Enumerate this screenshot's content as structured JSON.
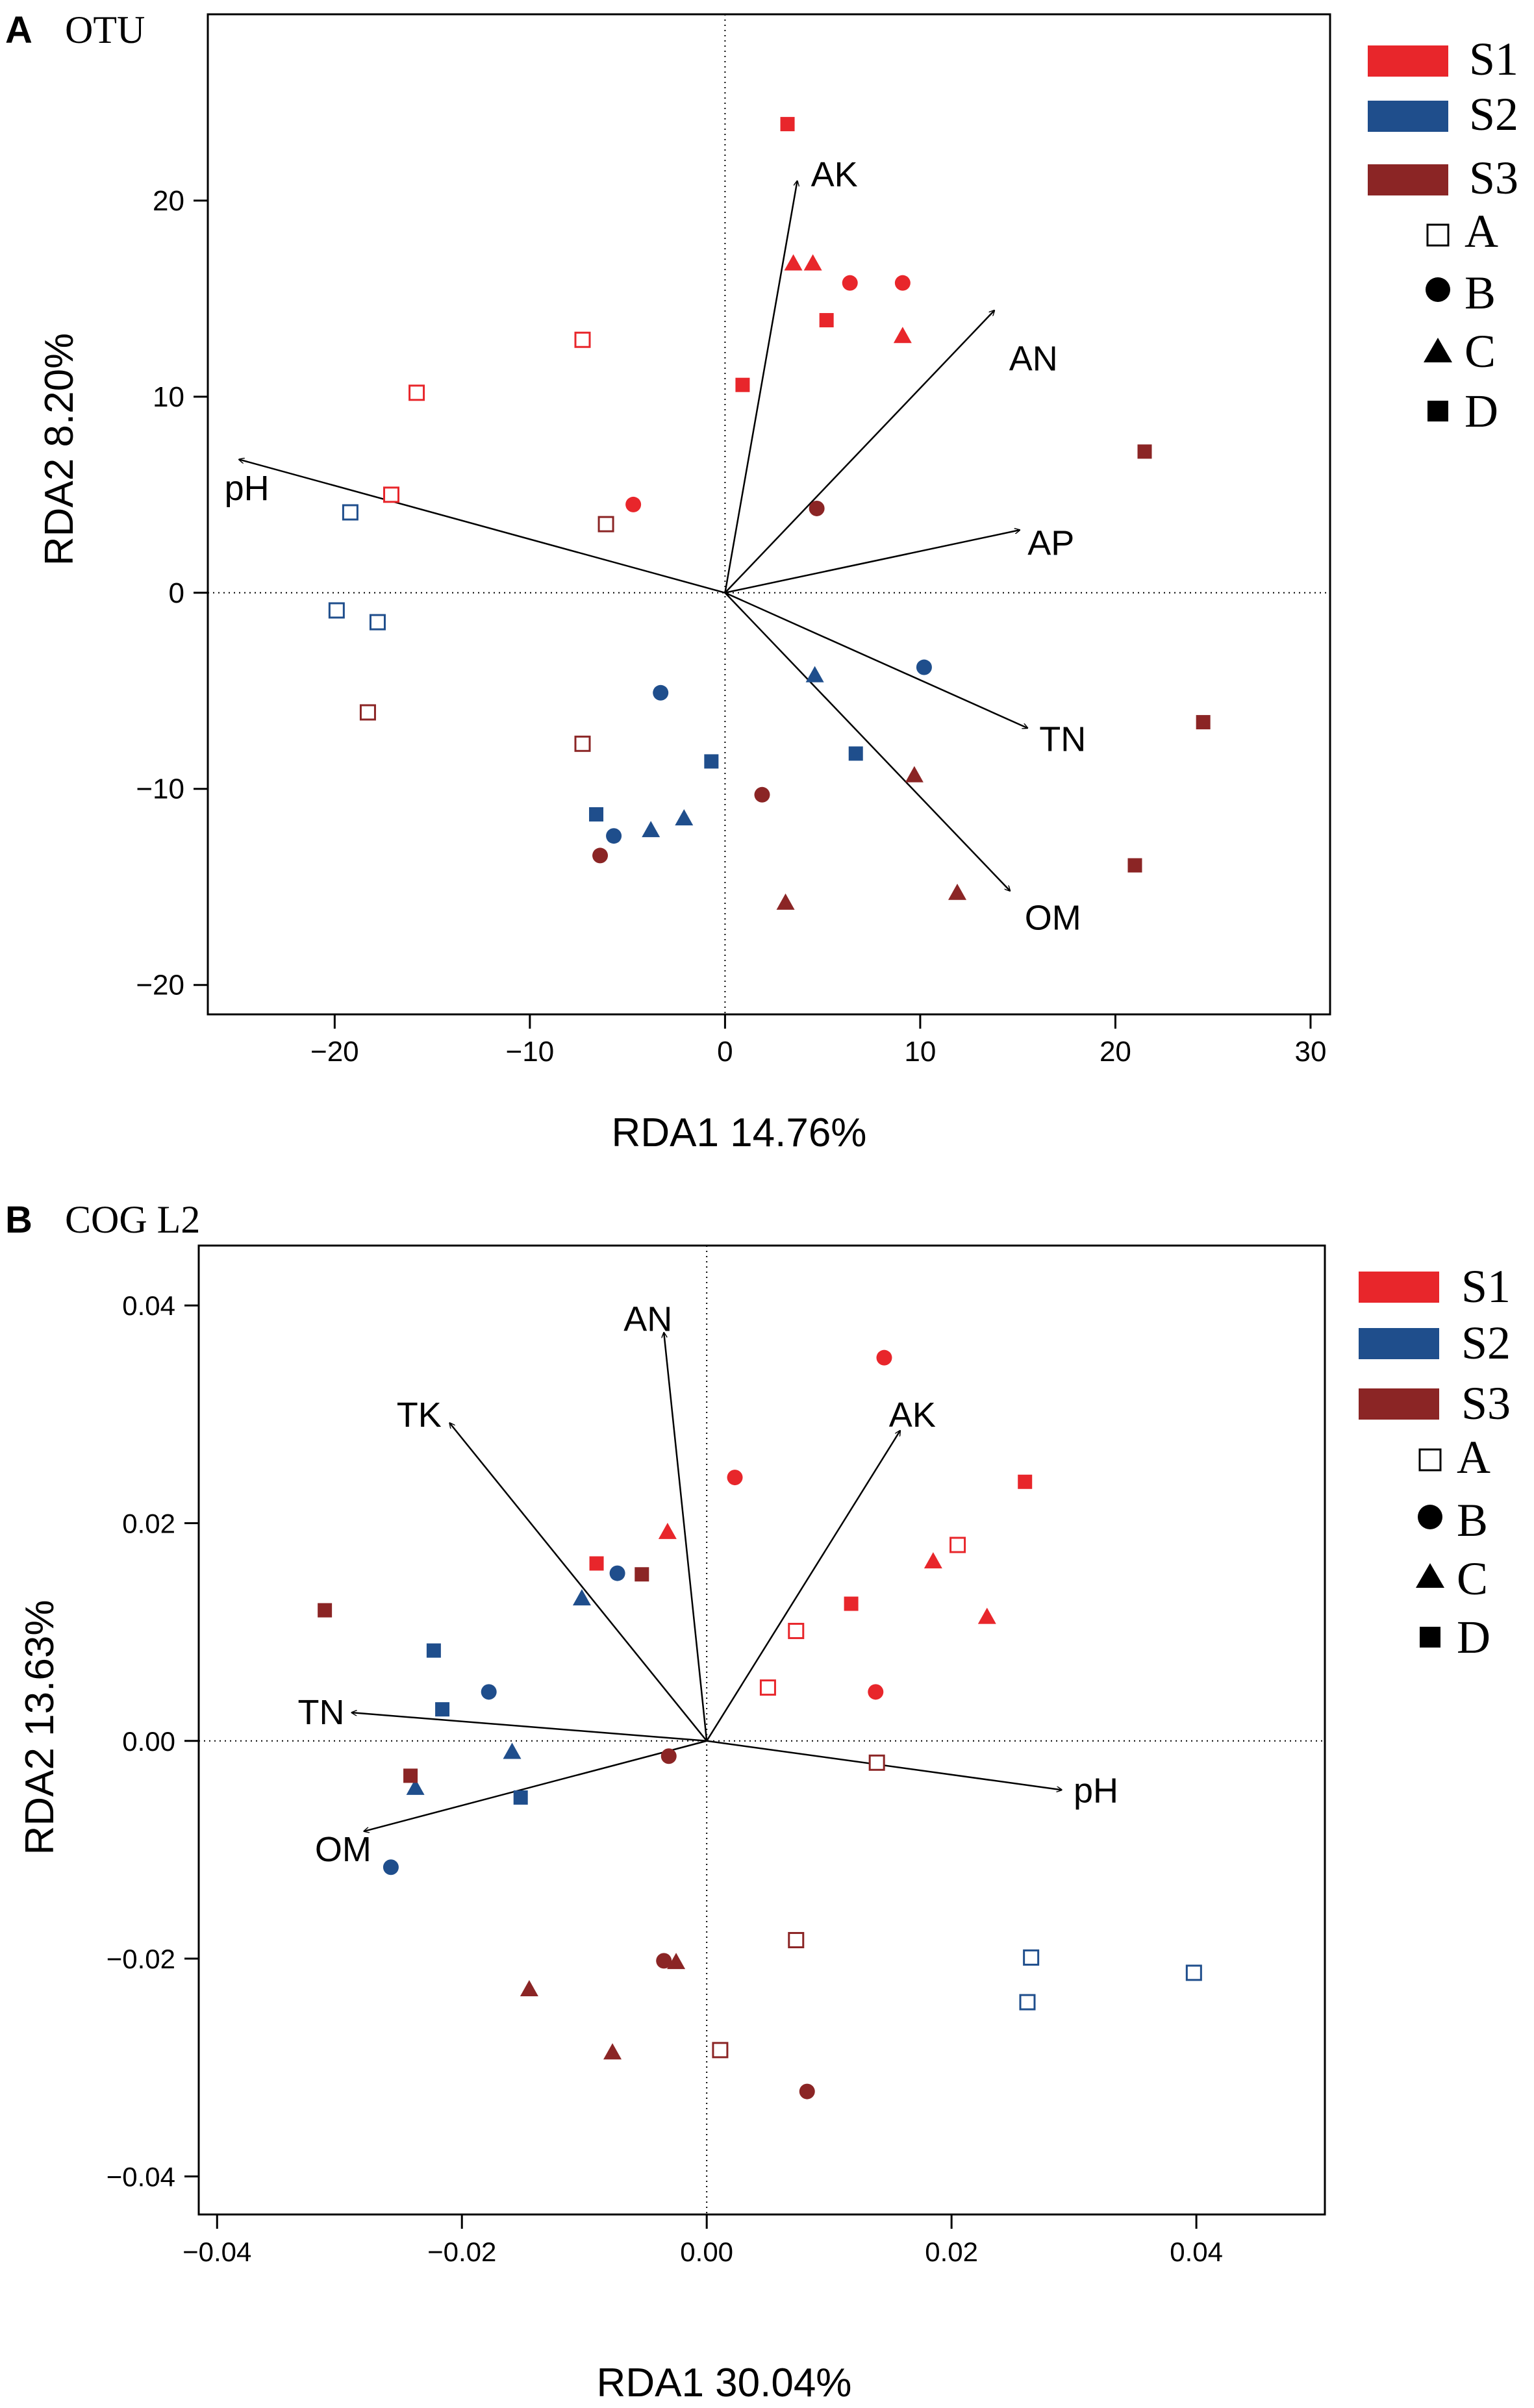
{
  "colors": {
    "S1": "#e8262b",
    "S2": "#1f4e8c",
    "S3": "#8b2525",
    "axis": "#000000"
  },
  "legend": {
    "sites": [
      {
        "key": "S1",
        "label": "S1"
      },
      {
        "key": "S2",
        "label": "S2"
      },
      {
        "key": "S3",
        "label": "S3"
      }
    ],
    "treatments": [
      {
        "shape": "open-square",
        "label": "A"
      },
      {
        "shape": "circle",
        "label": "B"
      },
      {
        "shape": "triangle",
        "label": "C"
      },
      {
        "shape": "square",
        "label": "D"
      }
    ]
  },
  "chart_data": [
    {
      "panel": "A",
      "title": "OTU",
      "type": "scatter",
      "xlabel": "RDA1 14.76%",
      "ylabel": "RDA2 8.20%",
      "xlim": [
        -26.5,
        31
      ],
      "ylim": [
        -21.5,
        29.5
      ],
      "xticks": [
        {
          "v": -20,
          "label": "−20"
        },
        {
          "v": -10,
          "label": "−10"
        },
        {
          "v": 0,
          "label": "0"
        },
        {
          "v": 10,
          "label": "10"
        },
        {
          "v": 20,
          "label": "20"
        },
        {
          "v": 30,
          "label": "30"
        }
      ],
      "yticks": [
        {
          "v": -20,
          "label": "−20"
        },
        {
          "v": -10,
          "label": "−10"
        },
        {
          "v": 0,
          "label": "0"
        },
        {
          "v": 10,
          "label": "10"
        },
        {
          "v": 20,
          "label": "20"
        }
      ],
      "arrows": [
        {
          "label": "AK",
          "x": 3.7,
          "y": 21.0,
          "lx": 5.6,
          "ly": 21.2
        },
        {
          "label": "AN",
          "x": 13.8,
          "y": 14.4,
          "lx": 15.8,
          "ly": 11.8
        },
        {
          "label": "AP",
          "x": 15.1,
          "y": 3.2,
          "lx": 16.7,
          "ly": 2.4
        },
        {
          "label": "TN",
          "x": 15.5,
          "y": -6.9,
          "lx": 17.3,
          "ly": -7.6
        },
        {
          "label": "OM",
          "x": 14.6,
          "y": -15.2,
          "lx": 16.8,
          "ly": -16.7
        },
        {
          "label": "pH",
          "x": -24.9,
          "y": 6.8,
          "lx": -24.5,
          "ly": 5.2
        }
      ],
      "points": [
        {
          "site": "S1",
          "treat": "A",
          "x": -7.3,
          "y": 12.9
        },
        {
          "site": "S1",
          "treat": "A",
          "x": -15.8,
          "y": 10.2
        },
        {
          "site": "S1",
          "treat": "A",
          "x": -17.1,
          "y": 5.0
        },
        {
          "site": "S1",
          "treat": "B",
          "x": 6.4,
          "y": 15.8
        },
        {
          "site": "S1",
          "treat": "B",
          "x": 9.1,
          "y": 15.8
        },
        {
          "site": "S1",
          "treat": "B",
          "x": -4.7,
          "y": 4.5
        },
        {
          "site": "S1",
          "treat": "C",
          "x": 3.5,
          "y": 16.8
        },
        {
          "site": "S1",
          "treat": "C",
          "x": 4.5,
          "y": 16.8
        },
        {
          "site": "S1",
          "treat": "C",
          "x": 9.1,
          "y": 13.1
        },
        {
          "site": "S1",
          "treat": "D",
          "x": 3.2,
          "y": 23.9
        },
        {
          "site": "S1",
          "treat": "D",
          "x": 5.2,
          "y": 13.9
        },
        {
          "site": "S1",
          "treat": "D",
          "x": 0.9,
          "y": 10.6
        },
        {
          "site": "S2",
          "treat": "A",
          "x": -19.2,
          "y": 4.1
        },
        {
          "site": "S2",
          "treat": "A",
          "x": -19.9,
          "y": -0.9
        },
        {
          "site": "S2",
          "treat": "A",
          "x": -17.8,
          "y": -1.5
        },
        {
          "site": "S2",
          "treat": "B",
          "x": -3.3,
          "y": -5.1
        },
        {
          "site": "S2",
          "treat": "B",
          "x": -5.7,
          "y": -12.4
        },
        {
          "site": "S2",
          "treat": "B",
          "x": 10.2,
          "y": -3.8
        },
        {
          "site": "S2",
          "treat": "C",
          "x": 4.6,
          "y": -4.2
        },
        {
          "site": "S2",
          "treat": "C",
          "x": -3.8,
          "y": -12.1
        },
        {
          "site": "S2",
          "treat": "C",
          "x": -2.1,
          "y": -11.5
        },
        {
          "site": "S2",
          "treat": "D",
          "x": -0.7,
          "y": -8.6
        },
        {
          "site": "S2",
          "treat": "D",
          "x": -6.6,
          "y": -11.3
        },
        {
          "site": "S2",
          "treat": "D",
          "x": 6.7,
          "y": -8.2
        },
        {
          "site": "S3",
          "treat": "A",
          "x": -6.1,
          "y": 3.5
        },
        {
          "site": "S3",
          "treat": "A",
          "x": -18.3,
          "y": -6.1
        },
        {
          "site": "S3",
          "treat": "A",
          "x": -7.3,
          "y": -7.7
        },
        {
          "site": "S3",
          "treat": "B",
          "x": 4.7,
          "y": 4.3
        },
        {
          "site": "S3",
          "treat": "B",
          "x": 1.9,
          "y": -10.3
        },
        {
          "site": "S3",
          "treat": "B",
          "x": -6.4,
          "y": -13.4
        },
        {
          "site": "S3",
          "treat": "C",
          "x": 9.7,
          "y": -9.3
        },
        {
          "site": "S3",
          "treat": "C",
          "x": 3.1,
          "y": -15.8
        },
        {
          "site": "S3",
          "treat": "C",
          "x": 11.9,
          "y": -15.3
        },
        {
          "site": "S3",
          "treat": "D",
          "x": 21.5,
          "y": 7.2
        },
        {
          "site": "S3",
          "treat": "D",
          "x": 24.5,
          "y": -6.6
        },
        {
          "site": "S3",
          "treat": "D",
          "x": 21.0,
          "y": -13.9
        }
      ]
    },
    {
      "panel": "B",
      "title": "COG L2",
      "type": "scatter",
      "xlabel": "RDA1 30.04%",
      "ylabel": "RDA2 13.63%",
      "xlim": [
        -0.0415,
        0.0505
      ],
      "ylim": [
        -0.0435,
        0.0455
      ],
      "xticks": [
        {
          "v": -0.04,
          "label": "−0.04"
        },
        {
          "v": -0.02,
          "label": "−0.02"
        },
        {
          "v": 0,
          "label": "0.00"
        },
        {
          "v": 0.02,
          "label": "0.02"
        },
        {
          "v": 0.04,
          "label": "0.04"
        }
      ],
      "yticks": [
        {
          "v": -0.04,
          "label": "−0.04"
        },
        {
          "v": -0.02,
          "label": "−0.02"
        },
        {
          "v": 0,
          "label": "0.00"
        },
        {
          "v": 0.02,
          "label": "0.02"
        },
        {
          "v": 0.04,
          "label": "0.04"
        }
      ],
      "arrows": [
        {
          "label": "AN",
          "x": -0.0035,
          "y": 0.0375,
          "lx": -0.0048,
          "ly": 0.0385
        },
        {
          "label": "AK",
          "x": 0.0158,
          "y": 0.0285,
          "lx": 0.0168,
          "ly": 0.0297
        },
        {
          "label": "TK",
          "x": -0.021,
          "y": 0.0292,
          "lx": -0.0235,
          "ly": 0.0297
        },
        {
          "label": "TN",
          "x": -0.029,
          "y": 0.0026,
          "lx": -0.0315,
          "ly": 0.0024
        },
        {
          "label": "OM",
          "x": -0.028,
          "y": -0.0083,
          "lx": -0.0297,
          "ly": -0.0102
        },
        {
          "label": "pH",
          "x": 0.029,
          "y": -0.0045,
          "lx": 0.0318,
          "ly": -0.0048
        }
      ],
      "points": [
        {
          "site": "S1",
          "treat": "A",
          "x": 0.0205,
          "y": 0.018
        },
        {
          "site": "S1",
          "treat": "A",
          "x": 0.0073,
          "y": 0.0101
        },
        {
          "site": "S1",
          "treat": "A",
          "x": 0.005,
          "y": 0.0049
        },
        {
          "site": "S1",
          "treat": "B",
          "x": 0.0145,
          "y": 0.0352
        },
        {
          "site": "S1",
          "treat": "B",
          "x": 0.0023,
          "y": 0.0242
        },
        {
          "site": "S1",
          "treat": "B",
          "x": 0.0138,
          "y": 0.0045
        },
        {
          "site": "S1",
          "treat": "C",
          "x": -0.0032,
          "y": 0.0192
        },
        {
          "site": "S1",
          "treat": "C",
          "x": 0.0185,
          "y": 0.0165
        },
        {
          "site": "S1",
          "treat": "C",
          "x": 0.0229,
          "y": 0.0114
        },
        {
          "site": "S1",
          "treat": "D",
          "x": 0.026,
          "y": 0.0238
        },
        {
          "site": "S1",
          "treat": "D",
          "x": -0.009,
          "y": 0.0163
        },
        {
          "site": "S1",
          "treat": "D",
          "x": 0.0118,
          "y": 0.0126
        },
        {
          "site": "S2",
          "treat": "A",
          "x": 0.0265,
          "y": -0.0199
        },
        {
          "site": "S2",
          "treat": "A",
          "x": 0.0262,
          "y": -0.024
        },
        {
          "site": "S2",
          "treat": "A",
          "x": 0.0398,
          "y": -0.0213
        },
        {
          "site": "S2",
          "treat": "B",
          "x": -0.0073,
          "y": 0.0154
        },
        {
          "site": "S2",
          "treat": "B",
          "x": -0.0178,
          "y": 0.0045
        },
        {
          "site": "S2",
          "treat": "B",
          "x": -0.0258,
          "y": -0.0116
        },
        {
          "site": "S2",
          "treat": "C",
          "x": -0.0102,
          "y": 0.0131
        },
        {
          "site": "S2",
          "treat": "C",
          "x": -0.0159,
          "y": -0.001
        },
        {
          "site": "S2",
          "treat": "C",
          "x": -0.0238,
          "y": -0.0043
        },
        {
          "site": "S2",
          "treat": "D",
          "x": -0.0223,
          "y": 0.0083
        },
        {
          "site": "S2",
          "treat": "D",
          "x": -0.0216,
          "y": 0.0029
        },
        {
          "site": "S2",
          "treat": "D",
          "x": -0.0152,
          "y": -0.0052
        },
        {
          "site": "S3",
          "treat": "A",
          "x": 0.0139,
          "y": -0.002
        },
        {
          "site": "S3",
          "treat": "A",
          "x": 0.0073,
          "y": -0.0183
        },
        {
          "site": "S3",
          "treat": "A",
          "x": 0.0011,
          "y": -0.0284
        },
        {
          "site": "S3",
          "treat": "B",
          "x": -0.0031,
          "y": -0.0014
        },
        {
          "site": "S3",
          "treat": "B",
          "x": -0.0035,
          "y": -0.0202
        },
        {
          "site": "S3",
          "treat": "B",
          "x": 0.0082,
          "y": -0.0322
        },
        {
          "site": "S3",
          "treat": "C",
          "x": -0.0025,
          "y": -0.0203
        },
        {
          "site": "S3",
          "treat": "C",
          "x": -0.0145,
          "y": -0.0228
        },
        {
          "site": "S3",
          "treat": "C",
          "x": -0.0077,
          "y": -0.0286
        },
        {
          "site": "S3",
          "treat": "D",
          "x": -0.0312,
          "y": 0.012
        },
        {
          "site": "S3",
          "treat": "D",
          "x": -0.0053,
          "y": 0.0153
        },
        {
          "site": "S3",
          "treat": "D",
          "x": -0.0242,
          "y": -0.0032
        }
      ]
    }
  ]
}
